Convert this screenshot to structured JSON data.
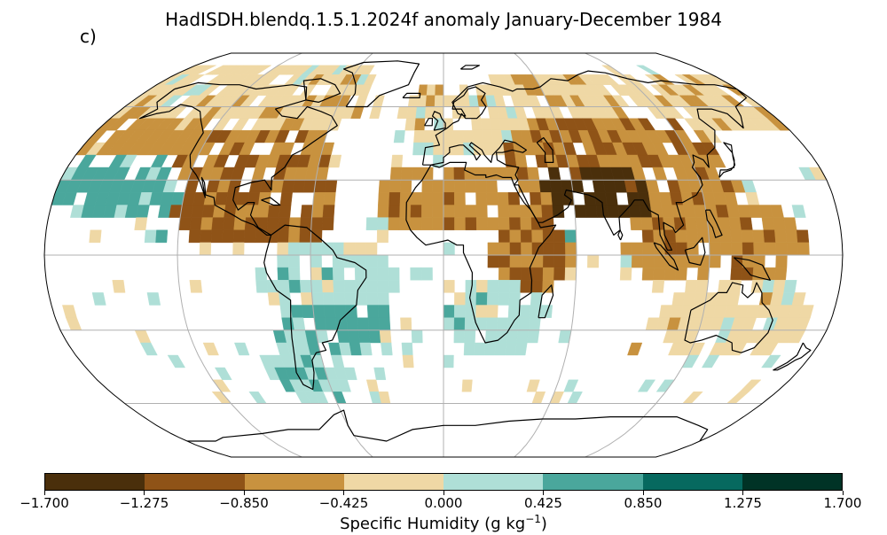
{
  "title": "HadISDH.blendq.1.5.1.2024f anomaly January-December 1984",
  "panel_label": "c)",
  "colorbar": {
    "label_main": "Specific Humidity (g kg",
    "label_exponent": "−1",
    "label_close": ")",
    "ticks": [
      "−1.700",
      "−1.275",
      "−0.850",
      "−0.425",
      "0.000",
      "0.425",
      "0.850",
      "1.275",
      "1.700"
    ],
    "colors": [
      "#4a2f0b",
      "#8f5317",
      "#c8923f",
      "#efd8a5",
      "#afdfd7",
      "#4aa79c",
      "#06695f",
      "#003326"
    ]
  },
  "map": {
    "projection": "Robinson",
    "graticule_lon_step": 60,
    "graticule_lat_step": 30,
    "anomaly_bands": [
      {
        "region": "Arctic North America",
        "lat": 70,
        "lon_from": -170,
        "lon_to": -60,
        "value": -0.2
      },
      {
        "region": "Northern Canada",
        "lat": 62,
        "lon_from": -150,
        "lon_to": -60,
        "value": -0.3
      },
      {
        "region": "North Pacific",
        "lat": 50,
        "lon_from": -180,
        "lon_to": -130,
        "value": -0.6
      },
      {
        "region": "United States",
        "lat": 40,
        "lon_from": -125,
        "lon_to": -70,
        "value": -0.7
      },
      {
        "region": "Mexico and Caribbean",
        "lat": 20,
        "lon_from": -110,
        "lon_to": -60,
        "value": -0.9
      },
      {
        "region": "Europe",
        "lat": 55,
        "lon_from": -10,
        "lon_to": 40,
        "value": -0.2
      },
      {
        "region": "Russia",
        "lat": 62,
        "lon_from": 40,
        "lon_to": 180,
        "value": -0.3
      },
      {
        "region": "Central Asia",
        "lat": 45,
        "lon_from": 40,
        "lon_to": 120,
        "value": -0.8
      },
      {
        "region": "Sahara",
        "lat": 22,
        "lon_from": -15,
        "lon_to": 35,
        "value": -0.7
      },
      {
        "region": "South Asia",
        "lat": 28,
        "lon_from": 60,
        "lon_to": 90,
        "value": -1.5
      },
      {
        "region": "China",
        "lat": 30,
        "lon_from": 95,
        "lon_to": 125,
        "value": -0.7
      },
      {
        "region": "Southeast Asia",
        "lat": 5,
        "lon_from": 95,
        "lon_to": 150,
        "value": -0.7
      },
      {
        "region": "Brazil",
        "lat": -10,
        "lon_from": -70,
        "lon_to": -35,
        "value": 0.2
      },
      {
        "region": "Southern Brazil",
        "lat": -25,
        "lon_from": -60,
        "lon_to": -40,
        "value": 0.6
      },
      {
        "region": "Southern Africa",
        "lat": -25,
        "lon_from": 15,
        "lon_to": 35,
        "value": 0.2
      },
      {
        "region": "East Africa",
        "lat": 0,
        "lon_from": 35,
        "lon_to": 45,
        "value": -0.9
      },
      {
        "region": "Australia",
        "lat": -25,
        "lon_from": 115,
        "lon_to": 155,
        "value": -0.2
      },
      {
        "region": "Patagonia",
        "lat": -45,
        "lon_from": -75,
        "lon_to": -60,
        "value": 0.3
      },
      {
        "region": "North Atlantic subtropics",
        "lat": 28,
        "lon_from": -180,
        "lon_to": -130,
        "value": 0.6
      }
    ]
  }
}
